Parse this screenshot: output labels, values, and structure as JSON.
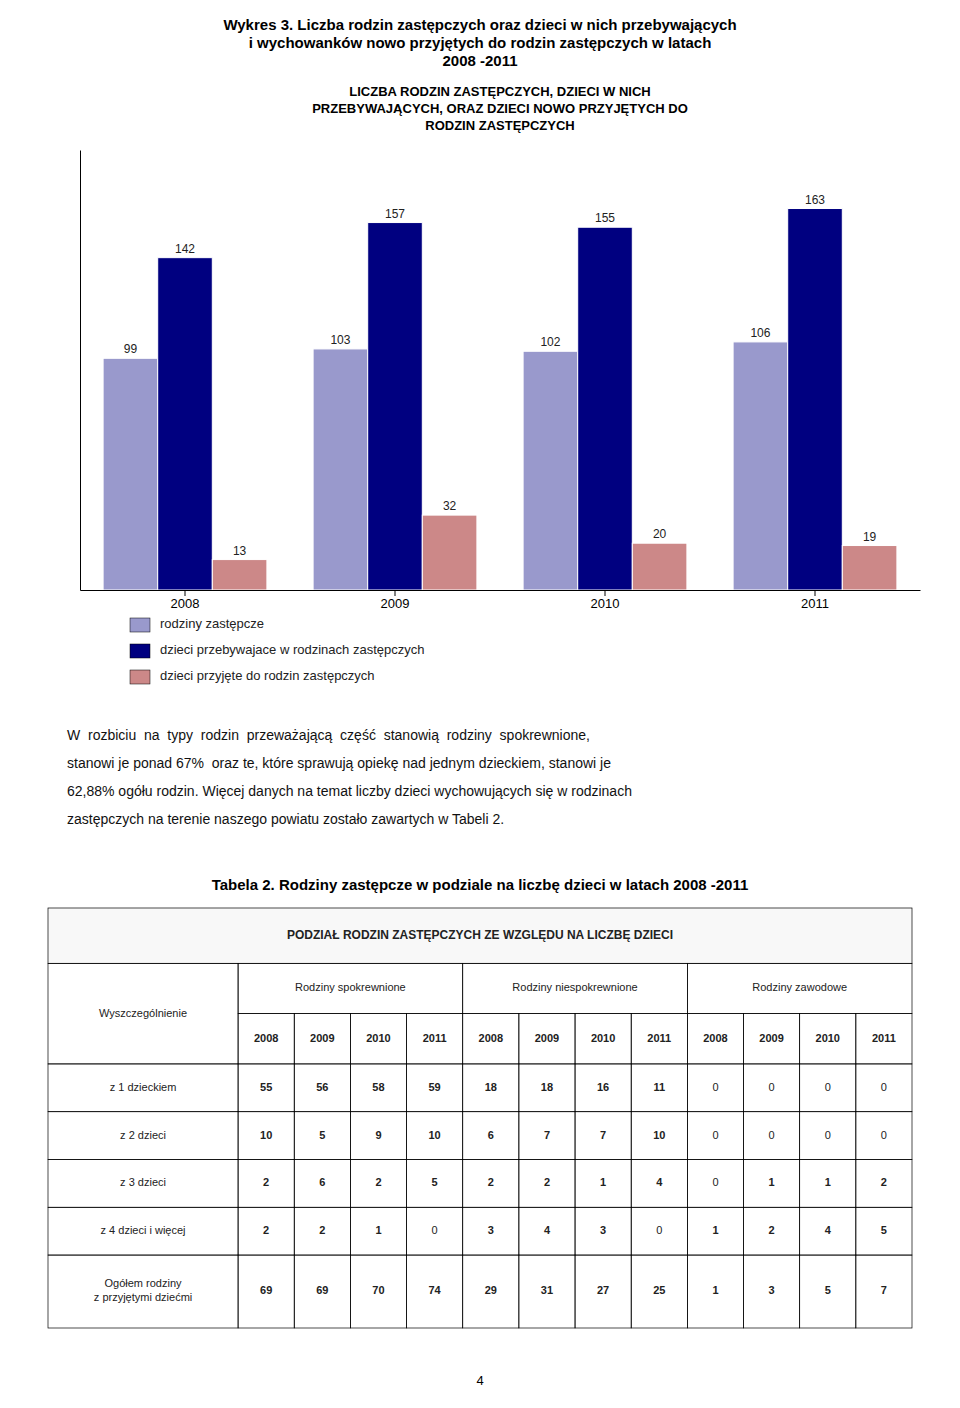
{
  "page_title": [
    "Wykres 3. Liczba rodzin zastępczych oraz dzieci w nich przebywających",
    "i wychowanków nowo przyjętych do rodzin zastępczych w latach",
    "2008 -2011"
  ],
  "chart_data": {
    "type": "bar",
    "title": "LICZBA RODZIN ZASTĘPCZYCH, DZIECI W NICH\nPRZEBYWAJĄCYCH, ORAZ DZIECI NOWO PRZYJĘTYCH DO\nRODZIN ZASTĘPCZYCH",
    "categories": [
      "2008",
      "2009",
      "2010",
      "2011"
    ],
    "series": [
      {
        "name": "rodziny zastępcze",
        "color": "#9999cc",
        "values": [
          99,
          103,
          102,
          106
        ]
      },
      {
        "name": "dzieci przebywajace w rodzinach zastępczych",
        "color": "#000080",
        "values": [
          142,
          157,
          155,
          163
        ]
      },
      {
        "name": "dzieci przyjęte do rodzin zastępczych",
        "color": "#cc8888",
        "values": [
          13,
          32,
          20,
          19
        ]
      }
    ],
    "ylim": [
      0,
      188
    ],
    "tick_labels": "x",
    "data_labels": true,
    "grid": false,
    "legend": "bottom"
  },
  "paragraph": [
    "W  rozbiciu  na  typy  rodzin  przeważającą  część  stanowią  rodziny  spokrewnione,",
    "stanowi je ponad 67%  oraz te, które sprawują opiekę nad jednym dzieckiem, stanowi je",
    "62,88% ogółu rodzin. Więcej danych na temat liczby dzieci wychowujących się w rodzinach",
    "zastępczych na terenie naszego powiatu zostało zawartych w Tabeli 2."
  ],
  "table": {
    "title": "Tabela 2. Rodziny zastępcze w podziale na liczbę dzieci w latach 2008 -2011",
    "header": "PODZIAŁ RODZIN ZASTĘPCZYCH ZE WZGLĘDU NA LICZBĘ DZIECI",
    "corner": "Wyszczególnienie",
    "groups": [
      "Rodziny spokrewnione",
      "Rodziny niespokrewnione",
      "Rodziny zawodowe"
    ],
    "years": [
      "2008",
      "2009",
      "2010",
      "2011"
    ],
    "row_labels": [
      "z 1 dzieckiem",
      "z 2 dzieci",
      "z 3 dzieci",
      "z 4 dzieci i więcej",
      "Ogółem rodziny\nz przyjętymi dziećmi"
    ],
    "rows": [
      [
        55,
        56,
        58,
        59,
        18,
        18,
        16,
        11,
        0,
        0,
        0,
        0
      ],
      [
        10,
        5,
        9,
        10,
        6,
        7,
        7,
        10,
        0,
        0,
        0,
        0
      ],
      [
        2,
        6,
        2,
        5,
        2,
        2,
        1,
        4,
        0,
        1,
        1,
        2
      ],
      [
        2,
        2,
        1,
        0,
        3,
        4,
        3,
        0,
        1,
        2,
        4,
        5
      ],
      [
        69,
        69,
        70,
        74,
        29,
        31,
        27,
        25,
        1,
        3,
        5,
        7
      ]
    ]
  },
  "page_number": "4"
}
